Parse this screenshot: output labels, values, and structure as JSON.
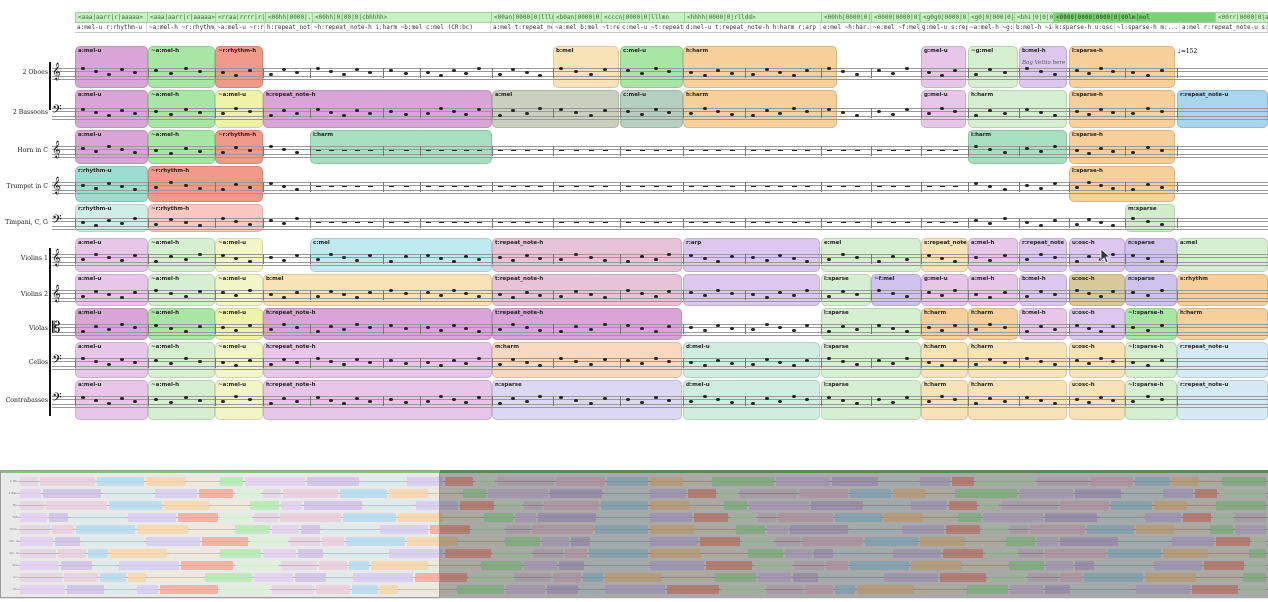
{
  "code_strip": [
    {
      "text": "<aaa|aarr|r|aaaaa>"
    },
    {
      "text": "<aaa|aarr|r|aaaaa>"
    },
    {
      "text": "<rraa|rrrr|r|aaa..."
    },
    {
      "text": "<00hh|0000|..."
    },
    {
      "text": "<00hh|0|00|0|cbhhhh>"
    },
    {
      "text": "<00an|0000|0|lllm..."
    },
    {
      "text": "<b0an|0000|0|lllmn"
    },
    {
      "text": "<cccn|0000|0|lllmn"
    },
    {
      "text": "<hhhh|0000|0|rlldd>"
    },
    {
      "text": "<00hh|0000|0|..."
    },
    {
      "text": "<0000|0000|0|e..."
    },
    {
      "text": "<g0g0|0000|0..."
    },
    {
      "text": "<g0|0|000|0|aa..."
    },
    {
      "text": "<bhi|0|0|00|0|b..."
    },
    {
      "text": "<0000|0000|0000|0|00lm|mol"
    },
    {
      "text": "<00rr|0000|0|ashh"
    }
  ],
  "label_strip": [
    {
      "text": "a:mel-u r:rhythm-u"
    },
    {
      "text": "~a:mel-h ~r:rhythm-h"
    },
    {
      "text": "~a:mel-u ~r:rh..."
    },
    {
      "text": "h:repeat_not..."
    },
    {
      "text": "~h:repeat_note-h i:harm ~b:mel c:mel (CR:bc)"
    },
    {
      "text": "a:mel t:repeat_not..."
    },
    {
      "text": "~a:mel b:mel ~t:rep..."
    },
    {
      "text": "c:mel-u ~t:repeat_n..."
    },
    {
      "text": "d:mel-u t:repeat_note-h h:harm r:arp (TE..."
    },
    {
      "text": "e:mel ~h:har..."
    },
    {
      "text": "~e:mel ~f:mel..."
    },
    {
      "text": "g:mel-u s:rep..."
    },
    {
      "text": "~a:mel-h ~g:me..."
    },
    {
      "text": "b:mel-h ~i:har..."
    },
    {
      "text": "k:sparse-h u:osc..."
    },
    {
      "text": "~l:sparse-h m:..."
    },
    {
      "text": "a:mel r:repeat_note-u s:rh"
    }
  ],
  "instruments": [
    {
      "name": "2 Oboes",
      "clef": "𝄞"
    },
    {
      "name": "2 Bassoons",
      "clef": "𝄢"
    },
    {
      "name": "Horn in C",
      "clef": "𝄞"
    },
    {
      "name": "Trumpet in C",
      "clef": "𝄞"
    },
    {
      "name": "Timpani, C, G",
      "clef": "𝄢"
    },
    {
      "name": "Violins 1",
      "clef": "𝄞"
    },
    {
      "name": "Violins 2",
      "clef": "𝄞"
    },
    {
      "name": "Violas",
      "clef": "𝄡"
    },
    {
      "name": "Cellos",
      "clef": "𝄢"
    },
    {
      "name": "Contrabasses",
      "clef": "𝄢"
    }
  ],
  "blocks": [
    {
      "row": 0,
      "label": "a:mel-u",
      "color": "#d9a5d6"
    },
    {
      "row": 0,
      "label": "~a:mel-h",
      "color": "#a8e6a3"
    },
    {
      "row": 0,
      "label": "~r:rhythm-h",
      "color": "#f29a8a"
    },
    {
      "row": 0,
      "label": "b:mel",
      "color": "#f7e3b5"
    },
    {
      "row": 0,
      "label": "c:mel-u",
      "color": "#a8e6a3"
    },
    {
      "row": 0,
      "label": "h:harm",
      "color": "#f7cf9a"
    },
    {
      "row": 0,
      "label": "g:mel-u",
      "color": "#e7c6ea"
    },
    {
      "row": 0,
      "label": "~g:mel",
      "color": "#d6efd0"
    },
    {
      "row": 0,
      "label": "b:mel-h",
      "color": "#dcc7ee"
    },
    {
      "row": 0,
      "label": "l:sparse-h",
      "color": "#f7cf9a"
    },
    {
      "row": 1,
      "label": "a:mel-u",
      "color": "#d9a5d6"
    },
    {
      "row": 1,
      "label": "~a:mel-h",
      "color": "#a8e6a3"
    },
    {
      "row": 1,
      "label": "~a:mel-u",
      "color": "#eef3a8"
    },
    {
      "row": 1,
      "label": "h:repeat_note-h",
      "color": "#d9a5d6"
    },
    {
      "row": 1,
      "label": "a:mel",
      "color": "#c9d0bf"
    },
    {
      "row": 1,
      "label": "c:mel-u",
      "color": "#b5cfc0"
    },
    {
      "row": 1,
      "label": "h:harm",
      "color": "#f7cf9a"
    },
    {
      "row": 1,
      "label": "g:mel-u",
      "color": "#e7c6ea"
    },
    {
      "row": 1,
      "label": "h:harm",
      "color": "#d6efd0"
    },
    {
      "row": 1,
      "label": "l:sparse-h",
      "color": "#f7cf9a"
    },
    {
      "row": 1,
      "label": "r:repeat_note-u",
      "color": "#a9d6ef"
    },
    {
      "row": 2,
      "label": "a:mel-u",
      "color": "#d9a5d6"
    },
    {
      "row": 2,
      "label": "~a:mel-h",
      "color": "#a8e6a3"
    },
    {
      "row": 2,
      "label": "~r:rhythm-h",
      "color": "#f29a8a"
    },
    {
      "row": 2,
      "label": "i:harm",
      "color": "#a8dfc0"
    },
    {
      "row": 2,
      "label": "i:harm",
      "color": "#a8dfc0"
    },
    {
      "row": 2,
      "label": "l:sparse-h",
      "color": "#f7cf9a"
    },
    {
      "row": 3,
      "label": "r:rhythm-u",
      "color": "#9fdcd0"
    },
    {
      "row": 3,
      "label": "~r:rhythm-h",
      "color": "#f29a8a"
    },
    {
      "row": 3,
      "label": "l:sparse-h",
      "color": "#f7cf9a"
    },
    {
      "row": 4,
      "label": "r:rhythm-u",
      "color": "#cfeee8"
    },
    {
      "row": 4,
      "label": "~r:rhythm-h",
      "color": "#f9c8c0"
    },
    {
      "row": 4,
      "label": "m:sparse",
      "color": "#cfeec9"
    },
    {
      "row": 5,
      "label": "a:mel-u",
      "color": "#e7c6ea"
    },
    {
      "row": 5,
      "label": "~a:mel-h",
      "color": "#d6efd0"
    },
    {
      "row": 5,
      "label": "~a:mel-u",
      "color": "#f2f5c8"
    },
    {
      "row": 5,
      "label": "c:mel",
      "color": "#bfeaf0"
    },
    {
      "row": 5,
      "label": "t:repeat_note-h",
      "color": "#e6c3d6"
    },
    {
      "row": 5,
      "label": "r:arp",
      "color": "#dcc7ee"
    },
    {
      "row": 5,
      "label": "e:mel",
      "color": "#d6efd0"
    },
    {
      "row": 5,
      "label": "s:repeat_note",
      "color": "#f7e3b5"
    },
    {
      "row": 5,
      "label": "a:mel-h",
      "color": "#e7c6ea"
    },
    {
      "row": 5,
      "label": "r:repeat_note",
      "color": "#dcc7ee"
    },
    {
      "row": 5,
      "label": "u:osc-h",
      "color": "#dcc7ee"
    },
    {
      "row": 5,
      "label": "n:sparse",
      "color": "#cfc3ee"
    },
    {
      "row": 5,
      "label": "a:mel",
      "color": "#d6efd0"
    },
    {
      "row": 6,
      "label": "a:mel-u",
      "color": "#e7c6ea"
    },
    {
      "row": 6,
      "label": "~a:mel-h",
      "color": "#d6efd0"
    },
    {
      "row": 6,
      "label": "~a:mel-u",
      "color": "#f2f5c8"
    },
    {
      "row": 6,
      "label": "b:mel",
      "color": "#f7e3b5"
    },
    {
      "row": 6,
      "label": "t:repeat_note-h",
      "color": "#e6c3d6"
    },
    {
      "row": 6,
      "label": "",
      "color": "#dcc7ee"
    },
    {
      "row": 6,
      "label": "l:sparse",
      "color": "#d6efd0"
    },
    {
      "row": 6,
      "label": "~f:mel",
      "color": "#cfc3ee"
    },
    {
      "row": 6,
      "label": "g:mel-u",
      "color": "#e7c6ea"
    },
    {
      "row": 6,
      "label": "a:mel-h",
      "color": "#e7c6ea"
    },
    {
      "row": 6,
      "label": "b:mel-h",
      "color": "#dcc7ee"
    },
    {
      "row": 6,
      "label": "u:osc-h",
      "color": "#d8c89a"
    },
    {
      "row": 6,
      "label": "n:sparse",
      "color": "#cfc3ee"
    },
    {
      "row": 6,
      "label": "s:rhythm",
      "color": "#f7cf9a"
    },
    {
      "row": 7,
      "label": "a:mel-u",
      "color": "#d9a5d6"
    },
    {
      "row": 7,
      "label": "~a:mel-h",
      "color": "#a8e6a3"
    },
    {
      "row": 7,
      "label": "~a:mel-u",
      "color": "#eef3a8"
    },
    {
      "row": 7,
      "label": "h:repeat_note-h",
      "color": "#d9a5d6"
    },
    {
      "row": 7,
      "label": "t:repeat_note-h",
      "color": "#d9a5d6"
    },
    {
      "row": 7,
      "label": "l:sparse",
      "color": "#d6efd0"
    },
    {
      "row": 7,
      "label": "h:harm",
      "color": "#f7cf9a"
    },
    {
      "row": 7,
      "label": "h:harm",
      "color": "#f7cf9a"
    },
    {
      "row": 7,
      "label": "b:mel-h",
      "color": "#e7c6ea"
    },
    {
      "row": 7,
      "label": "u:osc-h",
      "color": "#dcc7ee"
    },
    {
      "row": 7,
      "label": "~l:sparse-h",
      "color": "#a8e6a3"
    },
    {
      "row": 7,
      "label": "h:harm",
      "color": "#f7cf9a"
    },
    {
      "row": 8,
      "label": "a:mel-u",
      "color": "#e7c6ea"
    },
    {
      "row": 8,
      "label": "~a:mel-h",
      "color": "#d6efd0"
    },
    {
      "row": 8,
      "label": "~a:mel-u",
      "color": "#f2f5c8"
    },
    {
      "row": 8,
      "label": "h:repeat_note-h",
      "color": "#e7c6ea"
    },
    {
      "row": 8,
      "label": "m:harm",
      "color": "#fbd9c0"
    },
    {
      "row": 8,
      "label": "d:mel-u",
      "color": "#cfeee0"
    },
    {
      "row": 8,
      "label": "l:sparse",
      "color": "#d6efd0"
    },
    {
      "row": 8,
      "label": "h:harm",
      "color": "#f7e3b5"
    },
    {
      "row": 8,
      "label": "h:harm",
      "color": "#f7e3b5"
    },
    {
      "row": 8,
      "label": "u:osc-h",
      "color": "#f7e3b5"
    },
    {
      "row": 8,
      "label": "~l:sparse-h",
      "color": "#d6efd0"
    },
    {
      "row": 8,
      "label": "r:repeat_note-u",
      "color": "#d6eaf5"
    },
    {
      "row": 9,
      "label": "a:mel-u",
      "color": "#e7c6ea"
    },
    {
      "row": 9,
      "label": "~a:mel-h",
      "color": "#d6efd0"
    },
    {
      "row": 9,
      "label": "~a:mel-u",
      "color": "#f2f5c8"
    },
    {
      "row": 9,
      "label": "h:repeat_note-h",
      "color": "#e7c6ea"
    },
    {
      "row": 9,
      "label": "n:sparse",
      "color": "#dcd7f2"
    },
    {
      "row": 9,
      "label": "d:mel-u",
      "color": "#cfeee0"
    },
    {
      "row": 9,
      "label": "l:sparse",
      "color": "#d6efd0"
    },
    {
      "row": 9,
      "label": "h:harm",
      "color": "#f7e3b5"
    },
    {
      "row": 9,
      "label": "h:harm",
      "color": "#f7e3b5"
    },
    {
      "row": 9,
      "label": "u:osc-h",
      "color": "#f7e3b5"
    },
    {
      "row": 9,
      "label": "~l:sparse-h",
      "color": "#d6efd0"
    },
    {
      "row": 9,
      "label": "r:repeat_note-u",
      "color": "#d6eaf5"
    }
  ],
  "tempo_mark": "♩=152",
  "annotation": "Bog Vettio here",
  "minimap": {
    "rows": [
      "2 Ob.",
      "2 Bsn.",
      "Hn.",
      "Tpt.",
      "Timp.",
      "Vln. 1",
      "Vln. 2",
      "Vla.",
      "Vc.",
      "Cb."
    ]
  }
}
